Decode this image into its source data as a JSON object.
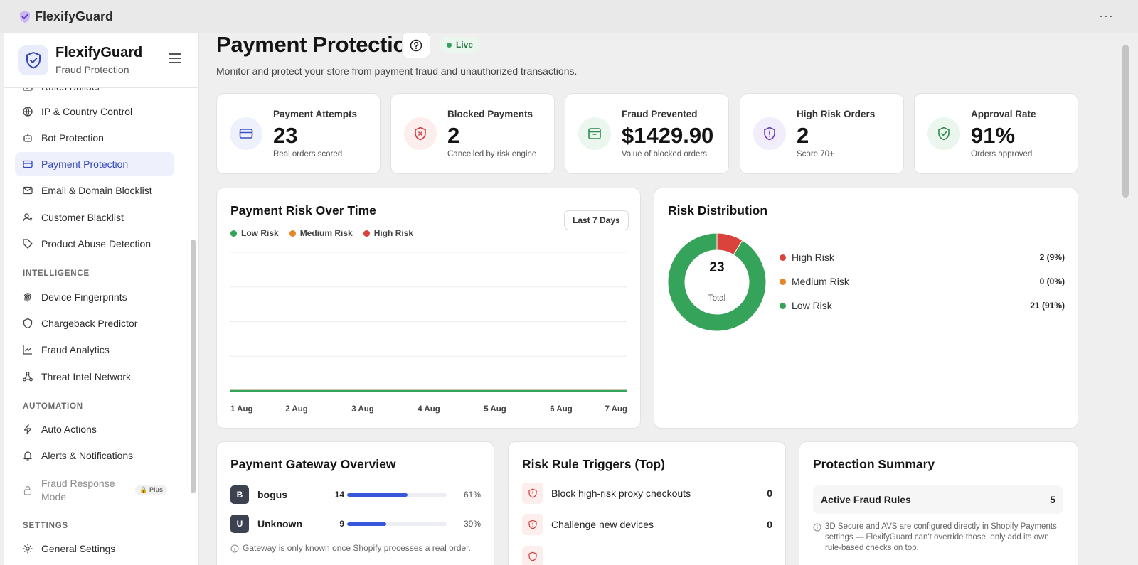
{
  "app": {
    "brand": "FlexifyGuard",
    "more_icon": "more-horizontal-icon"
  },
  "sidebar": {
    "title": "FlexifyGuard",
    "subtitle": "Fraud Protection",
    "items_top": [
      {
        "label": "Rules Builder",
        "icon": "rules-icon"
      },
      {
        "label": "IP & Country Control",
        "icon": "globe-icon"
      },
      {
        "label": "Bot Protection",
        "icon": "bot-icon"
      },
      {
        "label": "Payment Protection",
        "icon": "credit-card-icon",
        "active": true
      },
      {
        "label": "Email & Domain Blocklist",
        "icon": "mail-icon"
      },
      {
        "label": "Customer Blacklist",
        "icon": "user-x-icon"
      },
      {
        "label": "Product Abuse Detection",
        "icon": "tag-icon"
      }
    ],
    "section_intelligence": "INTELLIGENCE",
    "items_intelligence": [
      {
        "label": "Device Fingerprints",
        "icon": "fingerprint-icon"
      },
      {
        "label": "Chargeback Predictor",
        "icon": "shield-icon"
      },
      {
        "label": "Fraud Analytics",
        "icon": "line-chart-icon"
      },
      {
        "label": "Threat Intel Network",
        "icon": "network-icon"
      }
    ],
    "section_automation": "AUTOMATION",
    "items_automation": [
      {
        "label": "Auto Actions",
        "icon": "lightning-icon"
      },
      {
        "label": "Alerts & Notifications",
        "icon": "bell-icon"
      }
    ],
    "fraud_response": {
      "label": "Fraud Response Mode",
      "badge": "Plus",
      "icon": "lock-icon"
    },
    "section_settings": "SETTINGS",
    "items_settings": [
      {
        "label": "General Settings",
        "icon": "gear-icon"
      }
    ]
  },
  "header": {
    "title": "Payment Protection",
    "status": "Live",
    "description": "Monitor and protect your store from payment fraud and unauthorized transactions."
  },
  "stats": [
    {
      "label": "Payment Attempts",
      "value": "23",
      "sub": "Real orders scored",
      "icon": "credit-card-icon",
      "color": "#3a4fc4",
      "bg": "#eef1fb"
    },
    {
      "label": "Blocked Payments",
      "value": "2",
      "sub": "Cancelled by risk engine",
      "icon": "shield-x-icon",
      "color": "#d23b3b",
      "bg": "#fdeeee"
    },
    {
      "label": "Fraud Prevented",
      "value": "$1429.90",
      "sub": "Value of blocked orders",
      "icon": "archive-icon",
      "color": "#2f8a4f",
      "bg": "#eaf6ee"
    },
    {
      "label": "High Risk Orders",
      "value": "2",
      "sub": "Score 70+",
      "icon": "shield-alert-icon",
      "color": "#6b3ac4",
      "bg": "#f2edfb"
    },
    {
      "label": "Approval Rate",
      "value": "91%",
      "sub": "Orders approved",
      "icon": "shield-check-icon",
      "color": "#2f8a4f",
      "bg": "#eaf6ee"
    }
  ],
  "risk_chart": {
    "title": "Payment Risk Over Time",
    "range_label": "Last 7 Days",
    "legend": [
      {
        "name": "Low Risk",
        "color": "#36a35a"
      },
      {
        "name": "Medium Risk",
        "color": "#e8852a"
      },
      {
        "name": "High Risk",
        "color": "#d9433b"
      }
    ]
  },
  "distribution": {
    "title": "Risk Distribution",
    "total": "23",
    "total_label": "Total",
    "rows": [
      {
        "name": "High Risk",
        "value": "2 (9%)",
        "color": "#d9433b"
      },
      {
        "name": "Medium Risk",
        "value": "0 (0%)",
        "color": "#e8852a"
      },
      {
        "name": "Low Risk",
        "value": "21 (91%)",
        "color": "#36a35a"
      }
    ]
  },
  "gateway": {
    "title": "Payment Gateway Overview",
    "rows": [
      {
        "badge": "B",
        "name": "bogus",
        "count": "14",
        "pct": "61%",
        "fraction": 0.61
      },
      {
        "badge": "U",
        "name": "Unknown",
        "count": "9",
        "pct": "39%",
        "fraction": 0.39
      }
    ],
    "note": "Gateway is only known once Shopify processes a real order."
  },
  "rules": {
    "title": "Risk Rule Triggers (Top)",
    "rows": [
      {
        "name": "Block high-risk proxy checkouts",
        "count": "0"
      },
      {
        "name": "Challenge new devices",
        "count": "0"
      }
    ]
  },
  "summary": {
    "title": "Protection Summary",
    "active_rules_label": "Active Fraud Rules",
    "active_rules_value": "5",
    "note": "3D Secure and AVS are configured directly in Shopify Payments settings — FlexifyGuard can't override those, only add its own rule-based checks on top."
  },
  "chart_data": {
    "type": "line",
    "title": "Payment Risk Over Time",
    "categories": [
      "1 Aug",
      "2 Aug",
      "3 Aug",
      "4 Aug",
      "5 Aug",
      "6 Aug",
      "7 Aug"
    ],
    "series": [
      {
        "name": "Low Risk",
        "values": [
          0,
          0,
          0,
          0,
          0,
          0,
          0
        ],
        "color": "#36a35a"
      },
      {
        "name": "Medium Risk",
        "values": [
          0,
          0,
          0,
          0,
          0,
          0,
          0
        ],
        "color": "#e8852a"
      },
      {
        "name": "High Risk",
        "values": [
          0,
          0,
          0,
          0,
          0,
          0,
          0
        ],
        "color": "#d9433b"
      }
    ],
    "ylim": [
      0,
      4
    ],
    "grid": true,
    "legend_position": "top-left"
  }
}
